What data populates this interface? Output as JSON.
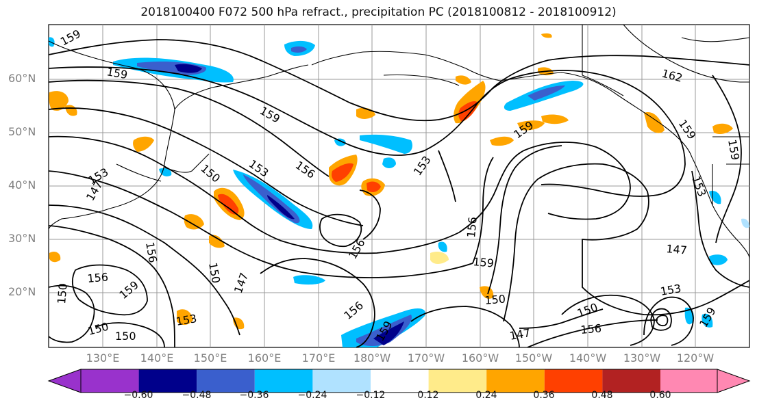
{
  "title": "2018100400 F072 500 hPa refract., precipitation PC (2018100812 - 2018100912)",
  "map": {
    "lat_labels": [
      "60°N",
      "50°N",
      "40°N",
      "30°N",
      "20°N"
    ],
    "lon_labels": [
      "130°E",
      "140°E",
      "150°E",
      "160°E",
      "170°E",
      "180°W",
      "170°W",
      "160°W",
      "150°W",
      "140°W",
      "130°W",
      "120°W"
    ],
    "contour_labels": [
      "159",
      "159",
      "159",
      "156",
      "153",
      "153",
      "150",
      "159",
      "162",
      "159",
      "159",
      "153",
      "156",
      "156",
      "159",
      "150",
      "147",
      "147",
      "150",
      "156",
      "153",
      "159",
      "153",
      "150",
      "156",
      "156",
      "159",
      "150",
      "147",
      "150",
      "156",
      "153",
      "159",
      "150",
      "147"
    ]
  },
  "colorbar": {
    "ticks": [
      "−0.60",
      "−0.48",
      "−0.36",
      "−0.24",
      "−0.12",
      "0.12",
      "0.24",
      "0.36",
      "0.48",
      "0.60"
    ],
    "colors": [
      "#9932cc",
      "#00008b",
      "#3a5fcd",
      "#00bfff",
      "#b0e2ff",
      "#ffffff",
      "#ffeb8a",
      "#ffa500",
      "#ff4000",
      "#b22222",
      "#ff88b2"
    ]
  }
}
